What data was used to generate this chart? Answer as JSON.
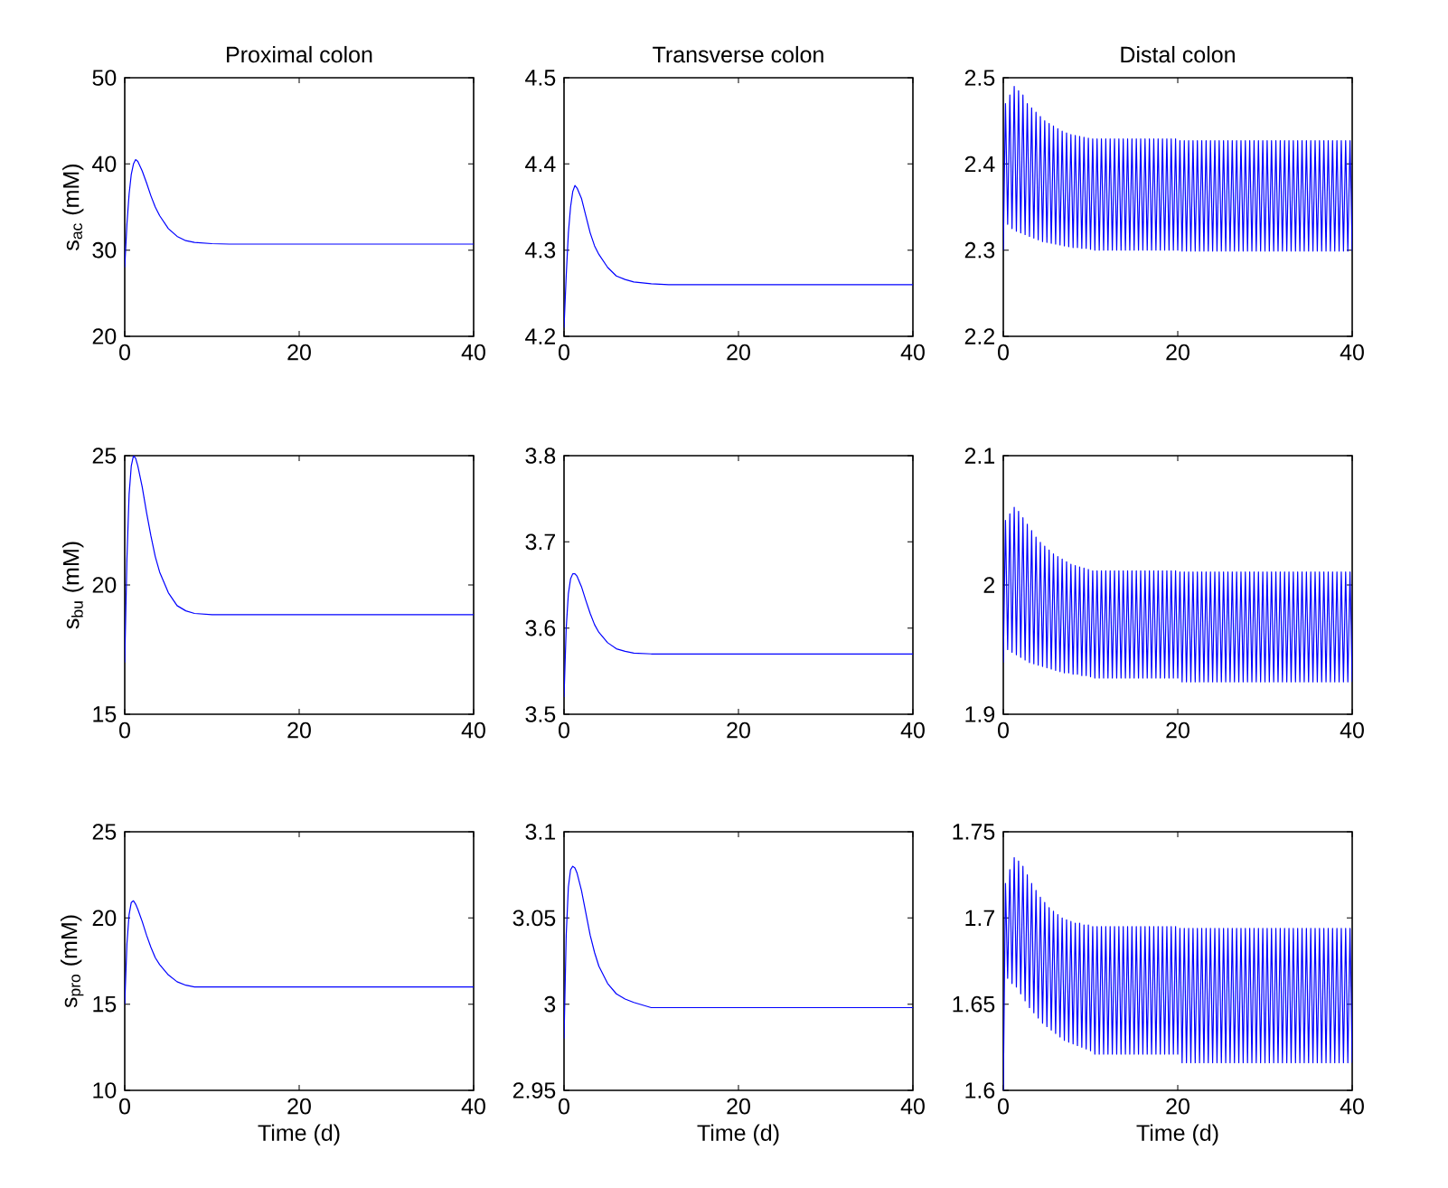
{
  "chart_data": [
    {
      "type": "line",
      "title": "Proximal colon",
      "ylabel": "s$_{ac}$ (mM)",
      "color": "#0000ff",
      "xlim": [
        0,
        40
      ],
      "ylim": [
        20,
        50
      ],
      "xticks": [
        0,
        20,
        40
      ],
      "yticks": [
        20,
        30,
        40,
        50
      ],
      "x": [
        0,
        0.25,
        0.5,
        0.75,
        1,
        1.25,
        1.5,
        2,
        2.5,
        3,
        3.5,
        4,
        5,
        6,
        7,
        8,
        10,
        12,
        15,
        20,
        30,
        40
      ],
      "values": [
        28,
        33,
        36.5,
        38.8,
        40,
        40.5,
        40.3,
        39.2,
        37.8,
        36.3,
        35,
        34,
        32.5,
        31.6,
        31.1,
        30.9,
        30.75,
        30.7,
        30.7,
        30.7,
        30.7,
        30.7
      ]
    },
    {
      "type": "line",
      "title": "Transverse colon",
      "color": "#0000ff",
      "xlim": [
        0,
        40
      ],
      "ylim": [
        4.2,
        4.5
      ],
      "xticks": [
        0,
        20,
        40
      ],
      "yticks": [
        4.2,
        4.3,
        4.4,
        4.5
      ],
      "x": [
        0,
        0.25,
        0.5,
        0.75,
        1,
        1.25,
        1.5,
        2,
        2.5,
        3,
        3.5,
        4,
        5,
        6,
        7,
        8,
        10,
        12,
        15,
        20,
        30,
        40
      ],
      "values": [
        4.21,
        4.27,
        4.32,
        4.35,
        4.368,
        4.375,
        4.372,
        4.36,
        4.34,
        4.32,
        4.305,
        4.295,
        4.28,
        4.27,
        4.266,
        4.263,
        4.261,
        4.26,
        4.26,
        4.26,
        4.26,
        4.26
      ]
    },
    {
      "type": "line",
      "title": "Distal colon",
      "color": "#0000ff",
      "xlim": [
        0,
        40
      ],
      "ylim": [
        2.2,
        2.5
      ],
      "xticks": [
        0,
        20,
        40
      ],
      "yticks": [
        2.2,
        2.3,
        2.4,
        2.5
      ],
      "x": [
        0,
        0.25,
        0.5,
        0.75,
        1,
        1.25,
        1.5,
        1.75,
        2,
        2.25,
        2.5,
        2.75,
        3,
        3.25,
        3.5,
        3.75,
        4,
        4.25,
        4.5,
        4.75,
        5,
        5.25,
        5.5,
        5.75,
        6,
        6.25,
        6.5,
        6.75,
        7,
        7.25,
        7.5,
        7.75,
        8,
        8.25,
        8.5,
        8.75,
        9,
        9.25,
        9.5,
        9.75,
        10,
        10.25,
        10.5,
        10.75,
        11,
        11.25,
        11.5,
        11.75,
        12,
        12.25,
        12.5,
        12.75,
        13,
        13.25,
        13.5,
        13.75,
        14,
        14.25,
        14.5,
        14.75,
        15,
        15.25,
        15.5,
        15.75,
        16,
        16.25,
        16.5,
        16.75,
        17,
        17.25,
        17.5,
        17.75,
        18,
        18.25,
        18.5,
        18.75,
        19,
        19.25,
        19.5,
        19.75,
        20,
        20.25,
        20.5,
        20.75,
        21,
        21.25,
        21.5,
        21.75,
        22,
        22.25,
        22.5,
        22.75,
        23,
        23.25,
        23.5,
        23.75,
        24,
        24.25,
        24.5,
        24.75,
        25,
        25.25,
        25.5,
        25.75,
        26,
        26.25,
        26.5,
        26.75,
        27,
        27.25,
        27.5,
        27.75,
        28,
        28.25,
        28.5,
        28.75,
        29,
        29.25,
        29.5,
        29.75,
        30,
        30.25,
        30.5,
        30.75,
        31,
        31.25,
        31.5,
        31.75,
        32,
        32.25,
        32.5,
        32.75,
        33,
        33.25,
        33.5,
        33.75,
        34,
        34.25,
        34.5,
        34.75,
        35,
        35.25,
        35.5,
        35.75,
        36,
        36.25,
        36.5,
        36.75,
        37,
        37.25,
        37.5,
        37.75,
        38,
        38.25,
        38.5,
        38.75,
        39,
        39.25,
        39.5,
        39.75,
        40
      ],
      "values": [
        2.3,
        2.47,
        2.33,
        2.48,
        2.325,
        2.49,
        2.322,
        2.485,
        2.32,
        2.48,
        2.318,
        2.47,
        2.316,
        2.465,
        2.314,
        2.46,
        2.312,
        2.455,
        2.31,
        2.45,
        2.309,
        2.447,
        2.308,
        2.444,
        2.307,
        2.441,
        2.306,
        2.438,
        2.305,
        2.436,
        2.304,
        2.434,
        2.303,
        2.433,
        2.303,
        2.432,
        2.302,
        2.431,
        2.302,
        2.43,
        2.301,
        2.429,
        2.3,
        2.429,
        2.3,
        2.429,
        2.3,
        2.429,
        2.3,
        2.429,
        2.3,
        2.429,
        2.3,
        2.429,
        2.3,
        2.429,
        2.3,
        2.429,
        2.3,
        2.429,
        2.3,
        2.429,
        2.3,
        2.429,
        2.3,
        2.429,
        2.3,
        2.429,
        2.3,
        2.429,
        2.3,
        2.429,
        2.3,
        2.429,
        2.3,
        2.429,
        2.3,
        2.429,
        2.3,
        2.429,
        2.3,
        2.427,
        2.299,
        2.427,
        2.299,
        2.427,
        2.299,
        2.427,
        2.299,
        2.427,
        2.299,
        2.427,
        2.299,
        2.427,
        2.299,
        2.427,
        2.299,
        2.427,
        2.299,
        2.427,
        2.299,
        2.427,
        2.299,
        2.427,
        2.299,
        2.427,
        2.299,
        2.427,
        2.299,
        2.427,
        2.299,
        2.427,
        2.299,
        2.427,
        2.299,
        2.427,
        2.299,
        2.427,
        2.299,
        2.427,
        2.299,
        2.427,
        2.299,
        2.427,
        2.299,
        2.427,
        2.299,
        2.427,
        2.299,
        2.427,
        2.299,
        2.427,
        2.299,
        2.427,
        2.299,
        2.427,
        2.299,
        2.427,
        2.299,
        2.427,
        2.299,
        2.427,
        2.299,
        2.427,
        2.299,
        2.427,
        2.299,
        2.427,
        2.299,
        2.427,
        2.299,
        2.427,
        2.299,
        2.427,
        2.299,
        2.427,
        2.299,
        2.427,
        2.299,
        2.427,
        2.299
      ]
    },
    {
      "type": "line",
      "ylabel": "s$_{bu}$ (mM)",
      "color": "#0000ff",
      "xlim": [
        0,
        40
      ],
      "ylim": [
        15,
        25
      ],
      "xticks": [
        0,
        20,
        40
      ],
      "yticks": [
        15,
        20,
        25
      ],
      "x": [
        0,
        0.25,
        0.5,
        0.75,
        1,
        1.25,
        1.5,
        2,
        2.5,
        3,
        3.5,
        4,
        5,
        6,
        7,
        8,
        10,
        12,
        15,
        20,
        30,
        40
      ],
      "values": [
        17,
        21,
        23.5,
        24.6,
        25,
        24.9,
        24.6,
        23.8,
        22.8,
        21.9,
        21.1,
        20.5,
        19.7,
        19.2,
        19,
        18.9,
        18.85,
        18.85,
        18.85,
        18.85,
        18.85,
        18.85
      ]
    },
    {
      "type": "line",
      "color": "#0000ff",
      "xlim": [
        0,
        40
      ],
      "ylim": [
        3.5,
        3.8
      ],
      "xticks": [
        0,
        20,
        40
      ],
      "yticks": [
        3.5,
        3.6,
        3.7,
        3.8
      ],
      "x": [
        0,
        0.25,
        0.5,
        0.75,
        1,
        1.25,
        1.5,
        2,
        2.5,
        3,
        3.5,
        4,
        5,
        6,
        7,
        8,
        10,
        12,
        15,
        20,
        30,
        40
      ],
      "values": [
        3.52,
        3.6,
        3.64,
        3.657,
        3.663,
        3.663,
        3.66,
        3.648,
        3.632,
        3.617,
        3.604,
        3.595,
        3.583,
        3.576,
        3.573,
        3.571,
        3.57,
        3.57,
        3.57,
        3.57,
        3.57,
        3.57
      ]
    },
    {
      "type": "line",
      "color": "#0000ff",
      "xlim": [
        0,
        40
      ],
      "ylim": [
        1.9,
        2.1
      ],
      "xticks": [
        0,
        20,
        40
      ],
      "yticks": [
        1.9,
        2,
        2.1
      ],
      "x": [
        0,
        0.25,
        0.5,
        0.75,
        1,
        1.25,
        1.5,
        1.75,
        2,
        2.25,
        2.5,
        2.75,
        3,
        3.25,
        3.5,
        3.75,
        4,
        4.25,
        4.5,
        4.75,
        5,
        5.25,
        5.5,
        5.75,
        6,
        6.25,
        6.5,
        6.75,
        7,
        7.25,
        7.5,
        7.75,
        8,
        8.25,
        8.5,
        8.75,
        9,
        9.25,
        9.5,
        9.75,
        10,
        10.25,
        10.5,
        10.75,
        11,
        11.25,
        11.5,
        11.75,
        12,
        12.25,
        12.5,
        12.75,
        13,
        13.25,
        13.5,
        13.75,
        14,
        14.25,
        14.5,
        14.75,
        15,
        15.25,
        15.5,
        15.75,
        16,
        16.25,
        16.5,
        16.75,
        17,
        17.25,
        17.5,
        17.75,
        18,
        18.25,
        18.5,
        18.75,
        19,
        19.25,
        19.5,
        19.75,
        20,
        20.25,
        20.5,
        20.75,
        21,
        21.25,
        21.5,
        21.75,
        22,
        22.25,
        22.5,
        22.75,
        23,
        23.25,
        23.5,
        23.75,
        24,
        24.25,
        24.5,
        24.75,
        25,
        25.25,
        25.5,
        25.75,
        26,
        26.25,
        26.5,
        26.75,
        27,
        27.25,
        27.5,
        27.75,
        28,
        28.25,
        28.5,
        28.75,
        29,
        29.25,
        29.5,
        29.75,
        30,
        30.25,
        30.5,
        30.75,
        31,
        31.25,
        31.5,
        31.75,
        32,
        32.25,
        32.5,
        32.75,
        33,
        33.25,
        33.5,
        33.75,
        34,
        34.25,
        34.5,
        34.75,
        35,
        35.25,
        35.5,
        35.75,
        36,
        36.25,
        36.5,
        36.75,
        37,
        37.25,
        37.5,
        37.75,
        38,
        38.25,
        38.5,
        38.75,
        39,
        39.25,
        39.5,
        39.75,
        40
      ],
      "values": [
        1.94,
        2.05,
        1.95,
        2.055,
        1.948,
        2.06,
        1.946,
        2.057,
        1.944,
        2.052,
        1.942,
        2.047,
        1.94,
        2.042,
        1.939,
        2.037,
        1.938,
        2.033,
        1.937,
        2.03,
        1.936,
        2.027,
        1.935,
        2.024,
        1.934,
        2.022,
        1.933,
        2.02,
        1.932,
        2.018,
        1.932,
        2.016,
        1.931,
        2.015,
        1.931,
        2.014,
        1.93,
        2.013,
        1.93,
        2.012,
        1.929,
        2.011,
        1.928,
        2.011,
        1.928,
        2.011,
        1.928,
        2.011,
        1.928,
        2.011,
        1.928,
        2.011,
        1.928,
        2.011,
        1.928,
        2.011,
        1.928,
        2.011,
        1.928,
        2.011,
        1.928,
        2.011,
        1.928,
        2.011,
        1.928,
        2.011,
        1.928,
        2.011,
        1.928,
        2.011,
        1.928,
        2.011,
        1.928,
        2.011,
        1.928,
        2.011,
        1.928,
        2.011,
        1.928,
        2.011,
        1.928,
        2.01,
        1.925,
        2.01,
        1.925,
        2.01,
        1.925,
        2.01,
        1.925,
        2.01,
        1.925,
        2.01,
        1.925,
        2.01,
        1.925,
        2.01,
        1.925,
        2.01,
        1.925,
        2.01,
        1.925,
        2.01,
        1.925,
        2.01,
        1.925,
        2.01,
        1.925,
        2.01,
        1.925,
        2.01,
        1.925,
        2.01,
        1.925,
        2.01,
        1.925,
        2.01,
        1.925,
        2.01,
        1.925,
        2.01,
        1.925,
        2.01,
        1.925,
        2.01,
        1.925,
        2.01,
        1.925,
        2.01,
        1.925,
        2.01,
        1.925,
        2.01,
        1.925,
        2.01,
        1.925,
        2.01,
        1.925,
        2.01,
        1.925,
        2.01,
        1.925,
        2.01,
        1.925,
        2.01,
        1.925,
        2.01,
        1.925,
        2.01,
        1.925,
        2.01,
        1.925,
        2.01,
        1.925,
        2.01,
        1.925,
        2.01,
        1.925,
        2.01,
        1.925,
        2.01,
        1.925
      ]
    },
    {
      "type": "line",
      "ylabel": "s$_{pro}$ (mM)",
      "xlabel": "Time (d)",
      "color": "#0000ff",
      "xlim": [
        0,
        40
      ],
      "ylim": [
        10,
        25
      ],
      "xticks": [
        0,
        20,
        40
      ],
      "yticks": [
        10,
        15,
        20,
        25
      ],
      "x": [
        0,
        0.25,
        0.5,
        0.75,
        1,
        1.25,
        1.5,
        2,
        2.5,
        3,
        3.5,
        4,
        5,
        6,
        7,
        8,
        10,
        12,
        15,
        20,
        30,
        40
      ],
      "values": [
        15,
        18.5,
        20.2,
        20.9,
        21,
        20.8,
        20.5,
        19.8,
        19,
        18.3,
        17.7,
        17.3,
        16.7,
        16.3,
        16.1,
        16,
        16,
        16,
        16,
        16,
        16,
        16
      ]
    },
    {
      "type": "line",
      "xlabel": "Time (d)",
      "color": "#0000ff",
      "xlim": [
        0,
        40
      ],
      "ylim": [
        2.95,
        3.1
      ],
      "xticks": [
        0,
        20,
        40
      ],
      "yticks": [
        2.95,
        3,
        3.05,
        3.1
      ],
      "x": [
        0,
        0.25,
        0.5,
        0.75,
        1,
        1.25,
        1.5,
        2,
        2.5,
        3,
        3.5,
        4,
        5,
        6,
        7,
        8,
        10,
        12,
        15,
        20,
        30,
        40
      ],
      "values": [
        2.98,
        3.04,
        3.068,
        3.078,
        3.08,
        3.079,
        3.076,
        3.066,
        3.053,
        3.04,
        3.03,
        3.022,
        3.012,
        3.006,
        3.003,
        3.001,
        2.998,
        2.998,
        2.998,
        2.998,
        2.998,
        2.998
      ]
    },
    {
      "type": "line",
      "xlabel": "Time (d)",
      "color": "#0000ff",
      "xlim": [
        0,
        40
      ],
      "ylim": [
        1.6,
        1.75
      ],
      "xticks": [
        0,
        20,
        40
      ],
      "yticks": [
        1.6,
        1.65,
        1.7,
        1.75
      ],
      "x": [
        0,
        0.25,
        0.5,
        0.75,
        1,
        1.25,
        1.5,
        1.75,
        2,
        2.25,
        2.5,
        2.75,
        3,
        3.25,
        3.5,
        3.75,
        4,
        4.25,
        4.5,
        4.75,
        5,
        5.25,
        5.5,
        5.75,
        6,
        6.25,
        6.5,
        6.75,
        7,
        7.25,
        7.5,
        7.75,
        8,
        8.25,
        8.5,
        8.75,
        9,
        9.25,
        9.5,
        9.75,
        10,
        10.25,
        10.5,
        10.75,
        11,
        11.25,
        11.5,
        11.75,
        12,
        12.25,
        12.5,
        12.75,
        13,
        13.25,
        13.5,
        13.75,
        14,
        14.25,
        14.5,
        14.75,
        15,
        15.25,
        15.5,
        15.75,
        16,
        16.25,
        16.5,
        16.75,
        17,
        17.25,
        17.5,
        17.75,
        18,
        18.25,
        18.5,
        18.75,
        19,
        19.25,
        19.5,
        19.75,
        20,
        20.25,
        20.5,
        20.75,
        21,
        21.25,
        21.5,
        21.75,
        22,
        22.25,
        22.5,
        22.75,
        23,
        23.25,
        23.5,
        23.75,
        24,
        24.25,
        24.5,
        24.75,
        25,
        25.25,
        25.5,
        25.75,
        26,
        26.25,
        26.5,
        26.75,
        27,
        27.25,
        27.5,
        27.75,
        28,
        28.25,
        28.5,
        28.75,
        29,
        29.25,
        29.5,
        29.75,
        30,
        30.25,
        30.5,
        30.75,
        31,
        31.25,
        31.5,
        31.75,
        32,
        32.25,
        32.5,
        32.75,
        33,
        33.25,
        33.5,
        33.75,
        34,
        34.25,
        34.5,
        34.75,
        35,
        35.25,
        35.5,
        35.75,
        36,
        36.25,
        36.5,
        36.75,
        37,
        37.25,
        37.5,
        37.75,
        38,
        38.25,
        38.5,
        38.75,
        39,
        39.25,
        39.5,
        39.75,
        40
      ],
      "values": [
        1.6,
        1.72,
        1.665,
        1.728,
        1.662,
        1.735,
        1.66,
        1.733,
        1.656,
        1.73,
        1.652,
        1.725,
        1.648,
        1.72,
        1.645,
        1.716,
        1.642,
        1.712,
        1.639,
        1.709,
        1.637,
        1.706,
        1.635,
        1.704,
        1.633,
        1.702,
        1.631,
        1.7,
        1.629,
        1.699,
        1.628,
        1.698,
        1.627,
        1.697,
        1.626,
        1.697,
        1.625,
        1.696,
        1.624,
        1.696,
        1.623,
        1.695,
        1.621,
        1.695,
        1.621,
        1.695,
        1.621,
        1.695,
        1.621,
        1.695,
        1.621,
        1.695,
        1.621,
        1.695,
        1.621,
        1.695,
        1.621,
        1.695,
        1.621,
        1.695,
        1.621,
        1.695,
        1.621,
        1.695,
        1.621,
        1.695,
        1.621,
        1.695,
        1.621,
        1.695,
        1.621,
        1.695,
        1.621,
        1.695,
        1.621,
        1.695,
        1.621,
        1.695,
        1.621,
        1.695,
        1.621,
        1.694,
        1.616,
        1.694,
        1.616,
        1.694,
        1.616,
        1.694,
        1.616,
        1.694,
        1.616,
        1.694,
        1.616,
        1.694,
        1.616,
        1.694,
        1.616,
        1.694,
        1.616,
        1.694,
        1.616,
        1.694,
        1.616,
        1.694,
        1.616,
        1.694,
        1.616,
        1.694,
        1.616,
        1.694,
        1.616,
        1.694,
        1.616,
        1.694,
        1.616,
        1.694,
        1.616,
        1.694,
        1.616,
        1.694,
        1.616,
        1.694,
        1.616,
        1.694,
        1.616,
        1.694,
        1.616,
        1.694,
        1.616,
        1.694,
        1.616,
        1.694,
        1.616,
        1.694,
        1.616,
        1.694,
        1.616,
        1.694,
        1.616,
        1.694,
        1.616,
        1.694,
        1.616,
        1.694,
        1.616,
        1.694,
        1.616,
        1.694,
        1.616,
        1.694,
        1.616,
        1.694,
        1.616,
        1.694,
        1.616,
        1.694,
        1.616,
        1.694,
        1.616,
        1.694,
        1.616
      ]
    }
  ]
}
